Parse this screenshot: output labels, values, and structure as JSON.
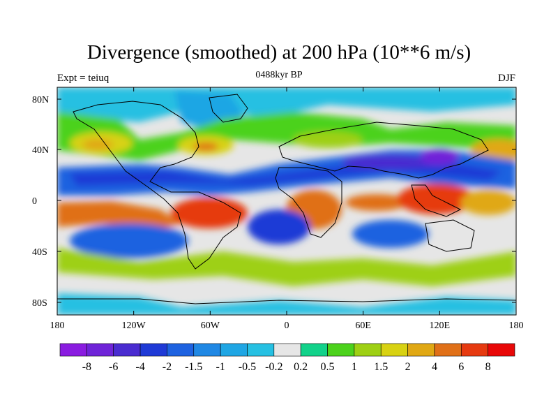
{
  "title": "Divergence (smoothed) at 200 hPa (10**6 m/s)",
  "left_label": "Expt = teiuq",
  "center_label": "0488kyr BP",
  "right_label": "DJF",
  "x_ticks": [
    "180",
    "120W",
    "60W",
    "0",
    "60E",
    "120E",
    "180"
  ],
  "y_ticks": [
    "80N",
    "40N",
    "0",
    "40S",
    "80S"
  ],
  "colorbar": {
    "labels": [
      "-8",
      "-6",
      "-4",
      "-2",
      "-1.5",
      "-1",
      "-0.5",
      "-0.2",
      "0.2",
      "0.5",
      "1",
      "1.5",
      "2",
      "4",
      "6",
      "8"
    ],
    "colors": [
      "#8a1ce0",
      "#6f24d8",
      "#4a2cd0",
      "#1f3ad6",
      "#1e62e0",
      "#2088e4",
      "#1fa6e4",
      "#26c0e2",
      "#e6e6e6",
      "#12d28a",
      "#4cd21c",
      "#9ed014",
      "#d8d212",
      "#e0a814",
      "#e07018",
      "#e63a10",
      "#e80808"
    ]
  },
  "colors": {
    "neutral": "#e6e6e6",
    "land_outline": "#000000"
  }
}
